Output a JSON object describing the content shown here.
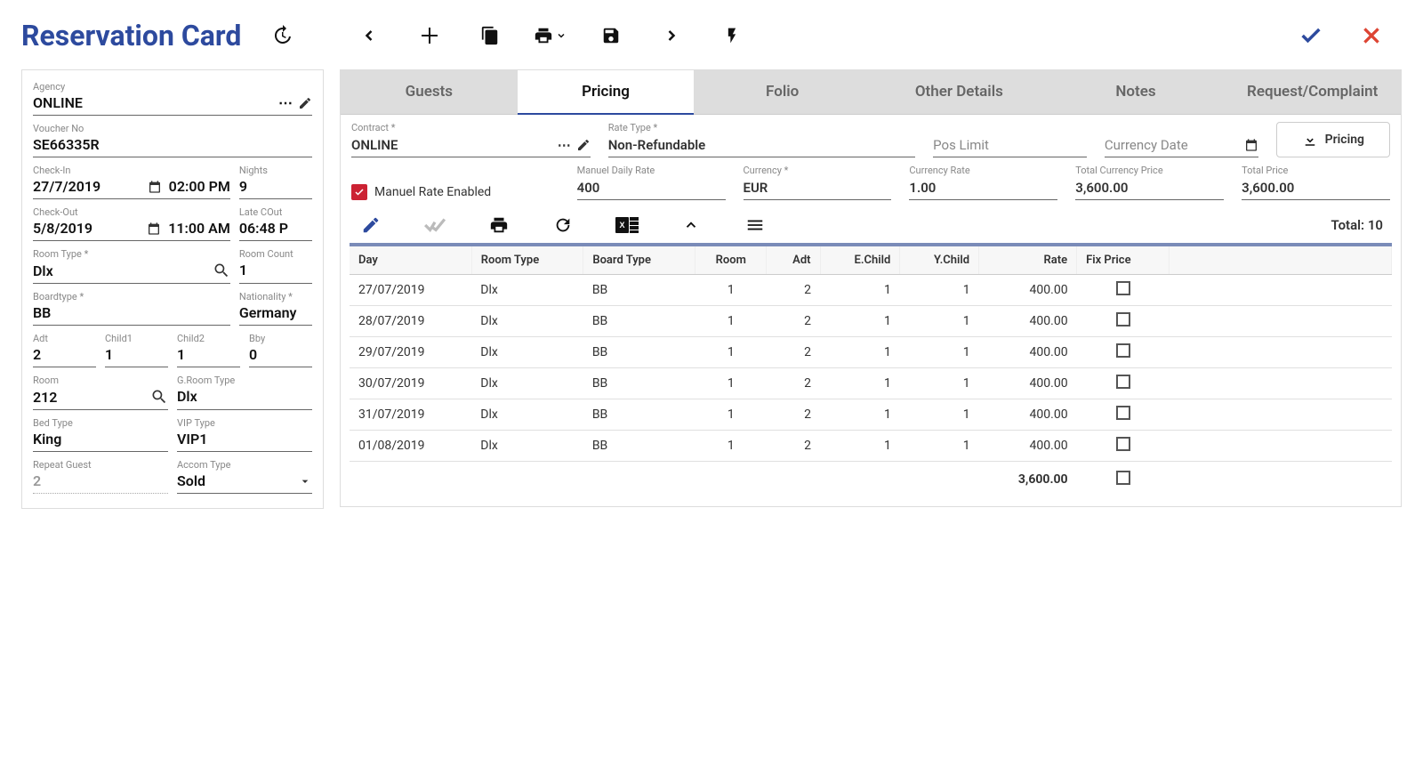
{
  "title": "Reservation Card",
  "left": {
    "agency": {
      "label": "Agency",
      "value": "ONLINE"
    },
    "voucher": {
      "label": "Voucher No",
      "value": "SE66335R"
    },
    "checkin": {
      "label": "Check-In",
      "date": "27/7/2019",
      "time": "02:00 PM"
    },
    "nights": {
      "label": "Nights",
      "value": "9"
    },
    "checkout": {
      "label": "Check-Out",
      "date": "5/8/2019",
      "time": "11:00 AM"
    },
    "latecout": {
      "label": "Late COut",
      "value": "06:48 P"
    },
    "roomtype": {
      "label": "Room Type *",
      "value": "Dlx"
    },
    "roomcount": {
      "label": "Room Count",
      "value": "1"
    },
    "boardtype": {
      "label": "Boardtype *",
      "value": "BB"
    },
    "nationality": {
      "label": "Nationality *",
      "value": "Germany"
    },
    "adt": {
      "label": "Adt",
      "value": "2"
    },
    "child1": {
      "label": "Child1",
      "value": "1"
    },
    "child2": {
      "label": "Child2",
      "value": "1"
    },
    "bby": {
      "label": "Bby",
      "value": "0"
    },
    "room": {
      "label": "Room",
      "value": "212"
    },
    "groomtype": {
      "label": "G.Room Type",
      "value": "Dlx"
    },
    "bedtype": {
      "label": "Bed Type",
      "value": "King"
    },
    "viptype": {
      "label": "VIP Type",
      "value": "VIP1"
    },
    "repeat": {
      "label": "Repeat Guest",
      "value": "2"
    },
    "accom": {
      "label": "Accom Type",
      "value": "Sold"
    }
  },
  "tabs": [
    "Guests",
    "Pricing",
    "Folio",
    "Other Details",
    "Notes",
    "Request/Complaint"
  ],
  "activeTab": 1,
  "pricing": {
    "contract": {
      "label": "Contract *",
      "value": "ONLINE"
    },
    "ratetype": {
      "label": "Rate Type *",
      "value": "Non-Refundable"
    },
    "poslimit": {
      "label": "Pos Limit",
      "value": ""
    },
    "currdate": {
      "label": "Currency Date",
      "value": ""
    },
    "btn": "Pricing",
    "manuelEnabled": "Manuel Rate Enabled",
    "manuelRate": {
      "label": "Manuel Daily Rate",
      "value": "400"
    },
    "currency": {
      "label": "Currency *",
      "value": "EUR"
    },
    "currRate": {
      "label": "Currency Rate",
      "value": "1.00"
    },
    "totalCurr": {
      "label": "Total Currency Price",
      "value": "3,600.00"
    },
    "totalPrice": {
      "label": "Total Price",
      "value": "3,600.00"
    }
  },
  "table": {
    "totalLabel": "Total: 10",
    "headers": [
      "Day",
      "Room Type",
      "Board Type",
      "Room",
      "Adt",
      "E.Child",
      "Y.Child",
      "Rate",
      "Fix Price"
    ],
    "rows": [
      {
        "day": "27/07/2019",
        "rt": "Dlx",
        "bt": "BB",
        "room": "1",
        "adt": "2",
        "ec": "1",
        "yc": "1",
        "rate": "400.00"
      },
      {
        "day": "28/07/2019",
        "rt": "Dlx",
        "bt": "BB",
        "room": "1",
        "adt": "2",
        "ec": "1",
        "yc": "1",
        "rate": "400.00"
      },
      {
        "day": "29/07/2019",
        "rt": "Dlx",
        "bt": "BB",
        "room": "1",
        "adt": "2",
        "ec": "1",
        "yc": "1",
        "rate": "400.00"
      },
      {
        "day": "30/07/2019",
        "rt": "Dlx",
        "bt": "BB",
        "room": "1",
        "adt": "2",
        "ec": "1",
        "yc": "1",
        "rate": "400.00"
      },
      {
        "day": "31/07/2019",
        "rt": "Dlx",
        "bt": "BB",
        "room": "1",
        "adt": "2",
        "ec": "1",
        "yc": "1",
        "rate": "400.00"
      },
      {
        "day": "01/08/2019",
        "rt": "Dlx",
        "bt": "BB",
        "room": "1",
        "adt": "2",
        "ec": "1",
        "yc": "1",
        "rate": "400.00"
      }
    ],
    "footerTotal": "3,600.00"
  }
}
